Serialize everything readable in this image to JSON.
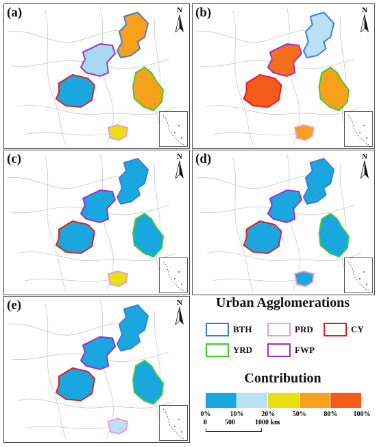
{
  "panels": [
    {
      "label": "(a)",
      "fills": {
        "bth": "#f7a01c",
        "fwp": "#a8d8f0",
        "cy": "#1aa7e0",
        "yrd": "#f7a01c",
        "prd": "#e8e010"
      }
    },
    {
      "label": "(b)",
      "fills": {
        "bth": "#b9e0f5",
        "fwp": "#f46d1a",
        "cy": "#f45a1a",
        "yrd": "#f7a01c",
        "prd": "#f7a01c"
      }
    },
    {
      "label": "(c)",
      "fills": {
        "bth": "#1aa7e0",
        "fwp": "#1aa7e0",
        "cy": "#1aa7e0",
        "yrd": "#1aa7e0",
        "prd": "#e8e010"
      }
    },
    {
      "label": "(d)",
      "fills": {
        "bth": "#1aa7e0",
        "fwp": "#1aa7e0",
        "cy": "#1aa7e0",
        "yrd": "#1aa7e0",
        "prd": "#1aa7e0"
      }
    },
    {
      "label": "(e)",
      "fills": {
        "bth": "#1aa7e0",
        "fwp": "#1aa7e0",
        "cy": "#1aa7e0",
        "yrd": "#1aa7e0",
        "prd": "#b9e0f5"
      }
    }
  ],
  "north_label": "N",
  "legend": {
    "ua_title": "Urban Agglomerations",
    "ua_items": [
      {
        "code": "BTH",
        "color": "#3b7dd8"
      },
      {
        "code": "PRD",
        "color": "#f39ac8"
      },
      {
        "code": "CY",
        "color": "#e02020"
      },
      {
        "code": "YRD",
        "color": "#3ccf2a"
      },
      {
        "code": "FWP",
        "color": "#9b2fd0"
      }
    ],
    "contribution_title": "Contribution",
    "colorbar": [
      "#1aa7e0",
      "#b9e0f5",
      "#e8e010",
      "#f7a01c",
      "#f45a1a"
    ],
    "ticks": [
      "0%",
      "10%",
      "20%",
      "50%",
      "80%",
      "100%"
    ],
    "scale": {
      "labels": [
        "0",
        "500",
        "1000 km"
      ]
    }
  }
}
